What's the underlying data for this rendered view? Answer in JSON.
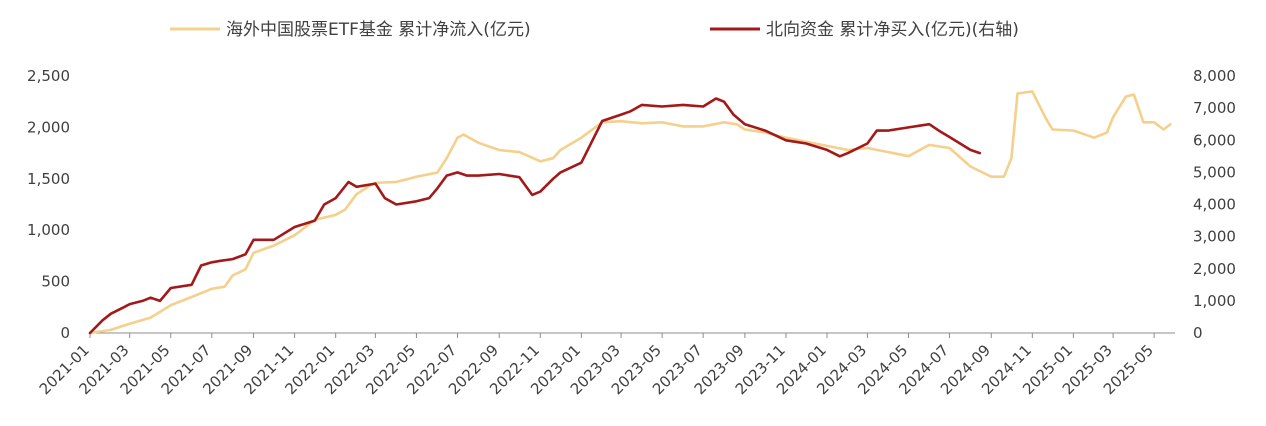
{
  "chart_data": {
    "type": "line",
    "title": "",
    "legend": {
      "placement": "top-center"
    },
    "grid": false,
    "x_ticks": [
      "2021-01",
      "2021-03",
      "2021-05",
      "2021-07",
      "2021-09",
      "2021-11",
      "2022-01",
      "2022-03",
      "2022-05",
      "2022-07",
      "2022-09",
      "2022-11",
      "2023-01",
      "2023-03",
      "2023-05",
      "2023-07",
      "2023-09",
      "2023-11",
      "2024-01",
      "2024-03",
      "2024-05",
      "2024-07",
      "2024-09",
      "2024-11",
      "2025-01",
      "2025-03",
      "2025-05"
    ],
    "x_range": [
      "2021-01-01",
      "2025-06-01"
    ],
    "y_left": {
      "ticks": [
        "0",
        "500",
        "1,000",
        "1,500",
        "2,000",
        "2,500"
      ],
      "range": [
        0,
        2500
      ]
    },
    "y_right": {
      "ticks": [
        "0",
        "1,000",
        "2,000",
        "3,000",
        "4,000",
        "5,000",
        "6,000",
        "7,000",
        "8,000"
      ],
      "range": [
        0,
        8000
      ]
    },
    "series": [
      {
        "name": "海外中国股票ETF基金  累计净流入(亿元)",
        "axis": "left",
        "color": "#f5d08c",
        "points": [
          [
            "2021-01-01",
            0
          ],
          [
            "2021-02-01",
            30
          ],
          [
            "2021-03-01",
            90
          ],
          [
            "2021-04-01",
            150
          ],
          [
            "2021-05-01",
            270
          ],
          [
            "2021-06-01",
            350
          ],
          [
            "2021-07-01",
            430
          ],
          [
            "2021-07-20",
            450
          ],
          [
            "2021-08-01",
            560
          ],
          [
            "2021-08-20",
            620
          ],
          [
            "2021-09-01",
            780
          ],
          [
            "2021-10-01",
            850
          ],
          [
            "2021-11-01",
            950
          ],
          [
            "2021-12-01",
            1100
          ],
          [
            "2022-01-01",
            1150
          ],
          [
            "2022-01-15",
            1200
          ],
          [
            "2022-02-01",
            1350
          ],
          [
            "2022-02-20",
            1430
          ],
          [
            "2022-03-01",
            1460
          ],
          [
            "2022-04-01",
            1470
          ],
          [
            "2022-04-20",
            1500
          ],
          [
            "2022-05-01",
            1520
          ],
          [
            "2022-06-01",
            1560
          ],
          [
            "2022-06-15",
            1700
          ],
          [
            "2022-07-01",
            1900
          ],
          [
            "2022-07-10",
            1930
          ],
          [
            "2022-08-01",
            1850
          ],
          [
            "2022-09-01",
            1780
          ],
          [
            "2022-10-01",
            1760
          ],
          [
            "2022-11-01",
            1670
          ],
          [
            "2022-11-20",
            1700
          ],
          [
            "2022-12-01",
            1780
          ],
          [
            "2023-01-01",
            1900
          ],
          [
            "2023-02-01",
            2050
          ],
          [
            "2023-03-01",
            2060
          ],
          [
            "2023-04-01",
            2040
          ],
          [
            "2023-05-01",
            2050
          ],
          [
            "2023-06-01",
            2010
          ],
          [
            "2023-07-01",
            2010
          ],
          [
            "2023-08-01",
            2050
          ],
          [
            "2023-08-20",
            2030
          ],
          [
            "2023-09-01",
            1980
          ],
          [
            "2023-10-01",
            1950
          ],
          [
            "2023-11-01",
            1900
          ],
          [
            "2023-12-01",
            1860
          ],
          [
            "2024-01-01",
            1820
          ],
          [
            "2024-02-01",
            1780
          ],
          [
            "2024-03-01",
            1800
          ],
          [
            "2024-04-01",
            1760
          ],
          [
            "2024-05-01",
            1720
          ],
          [
            "2024-06-01",
            1830
          ],
          [
            "2024-07-01",
            1800
          ],
          [
            "2024-08-01",
            1620
          ],
          [
            "2024-09-01",
            1520
          ],
          [
            "2024-09-20",
            1520
          ],
          [
            "2024-10-01",
            1700
          ],
          [
            "2024-10-10",
            2330
          ],
          [
            "2024-11-01",
            2350
          ],
          [
            "2024-11-20",
            2100
          ],
          [
            "2024-12-01",
            1980
          ],
          [
            "2025-01-01",
            1970
          ],
          [
            "2025-02-01",
            1900
          ],
          [
            "2025-02-20",
            1950
          ],
          [
            "2025-03-01",
            2100
          ],
          [
            "2025-03-20",
            2300
          ],
          [
            "2025-04-01",
            2320
          ],
          [
            "2025-04-15",
            2050
          ],
          [
            "2025-05-01",
            2050
          ],
          [
            "2025-05-15",
            1980
          ],
          [
            "2025-05-25",
            2030
          ]
        ]
      },
      {
        "name": "北向资金  累计净买入(亿元)(右轴)",
        "axis": "right",
        "color": "#a31919",
        "points": [
          [
            "2021-01-01",
            0
          ],
          [
            "2021-01-20",
            400
          ],
          [
            "2021-02-01",
            600
          ],
          [
            "2021-02-20",
            800
          ],
          [
            "2021-03-01",
            900
          ],
          [
            "2021-03-20",
            1000
          ],
          [
            "2021-04-01",
            1100
          ],
          [
            "2021-04-15",
            1000
          ],
          [
            "2021-05-01",
            1400
          ],
          [
            "2021-06-01",
            1500
          ],
          [
            "2021-06-15",
            2100
          ],
          [
            "2021-07-01",
            2200
          ],
          [
            "2021-07-15",
            2250
          ],
          [
            "2021-08-01",
            2300
          ],
          [
            "2021-08-20",
            2450
          ],
          [
            "2021-09-01",
            2900
          ],
          [
            "2021-10-01",
            2900
          ],
          [
            "2021-11-01",
            3300
          ],
          [
            "2021-12-01",
            3500
          ],
          [
            "2021-12-15",
            4000
          ],
          [
            "2022-01-01",
            4200
          ],
          [
            "2022-01-20",
            4700
          ],
          [
            "2022-02-01",
            4550
          ],
          [
            "2022-03-01",
            4650
          ],
          [
            "2022-03-15",
            4200
          ],
          [
            "2022-04-01",
            4000
          ],
          [
            "2022-05-01",
            4100
          ],
          [
            "2022-05-20",
            4200
          ],
          [
            "2022-06-01",
            4500
          ],
          [
            "2022-06-15",
            4900
          ],
          [
            "2022-07-01",
            5000
          ],
          [
            "2022-07-15",
            4900
          ],
          [
            "2022-08-01",
            4900
          ],
          [
            "2022-09-01",
            4950
          ],
          [
            "2022-10-01",
            4850
          ],
          [
            "2022-10-20",
            4300
          ],
          [
            "2022-11-01",
            4400
          ],
          [
            "2022-11-20",
            4800
          ],
          [
            "2022-12-01",
            5000
          ],
          [
            "2023-01-01",
            5300
          ],
          [
            "2023-02-01",
            6600
          ],
          [
            "2023-03-01",
            6800
          ],
          [
            "2023-03-15",
            6900
          ],
          [
            "2023-04-01",
            7100
          ],
          [
            "2023-05-01",
            7050
          ],
          [
            "2023-06-01",
            7100
          ],
          [
            "2023-07-01",
            7050
          ],
          [
            "2023-07-20",
            7300
          ],
          [
            "2023-08-01",
            7200
          ],
          [
            "2023-08-15",
            6800
          ],
          [
            "2023-09-01",
            6500
          ],
          [
            "2023-10-01",
            6300
          ],
          [
            "2023-11-01",
            6000
          ],
          [
            "2023-12-01",
            5900
          ],
          [
            "2024-01-01",
            5700
          ],
          [
            "2024-01-20",
            5500
          ],
          [
            "2024-02-01",
            5600
          ],
          [
            "2024-03-01",
            5900
          ],
          [
            "2024-03-15",
            6300
          ],
          [
            "2024-04-01",
            6300
          ],
          [
            "2024-05-01",
            6400
          ],
          [
            "2024-06-01",
            6500
          ],
          [
            "2024-06-15",
            6300
          ],
          [
            "2024-07-01",
            6100
          ],
          [
            "2024-08-01",
            5700
          ],
          [
            "2024-08-15",
            5600
          ]
        ]
      }
    ]
  }
}
